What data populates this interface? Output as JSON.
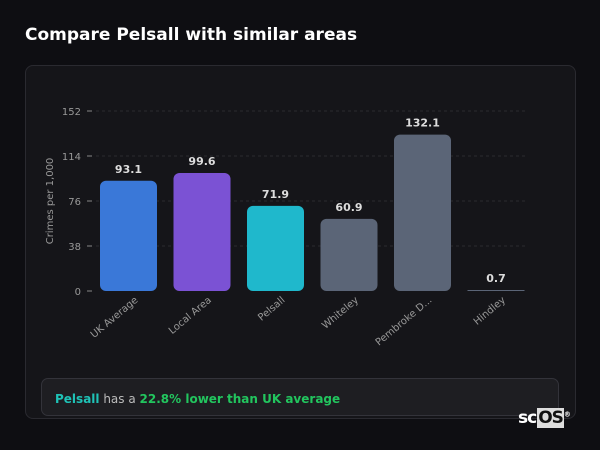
{
  "title": "Compare Pelsall with similar areas",
  "chart_data": {
    "type": "bar",
    "ylabel": "Crimes per 1,000",
    "yticks": [
      0,
      38,
      76,
      114,
      152
    ],
    "ylim": [
      0,
      152
    ],
    "grid": true,
    "categories": [
      "UK Average",
      "Local Area",
      "Pelsall",
      "Whiteley",
      "Pembroke D...",
      "Hindley"
    ],
    "values": [
      93.1,
      99.6,
      71.9,
      60.9,
      132.1,
      0.7
    ],
    "value_labels": [
      "93.1",
      "99.6",
      "71.9",
      "60.9",
      "132.1",
      "0.7"
    ],
    "colors": [
      "#3a78d8",
      "#7b52d4",
      "#1fb8cc",
      "#5b6577",
      "#5b6577",
      "#5b6577"
    ]
  },
  "summary": {
    "area": "Pelsall",
    "middle": " has a ",
    "highlight": "22.8% lower than UK average"
  },
  "logo": {
    "prefix": "sc",
    "boxed": "OS",
    "mark": "®"
  }
}
